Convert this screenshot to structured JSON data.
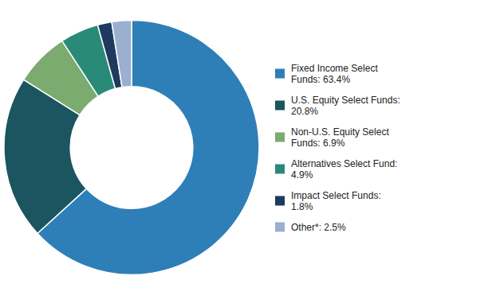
{
  "chart_data": {
    "type": "donut",
    "categories": [
      "Fixed Income Select\nFunds: 63.4%",
      "U.S. Equity Select Funds:\n20.8%",
      "Non-U.S. Equity Select\nFunds: 6.9%",
      "Alternatives Select Fund:\n4.9%",
      "Impact Select Funds:\n1.8%",
      "Other*: 2.5%"
    ],
    "values": [
      63.4,
      20.8,
      6.9,
      4.9,
      1.8,
      2.5
    ],
    "colors": [
      "#2e7fb8",
      "#1a5560",
      "#7bab6e",
      "#2a8a78",
      "#1e3a5f",
      "#9bafd0"
    ],
    "legend": "right"
  }
}
